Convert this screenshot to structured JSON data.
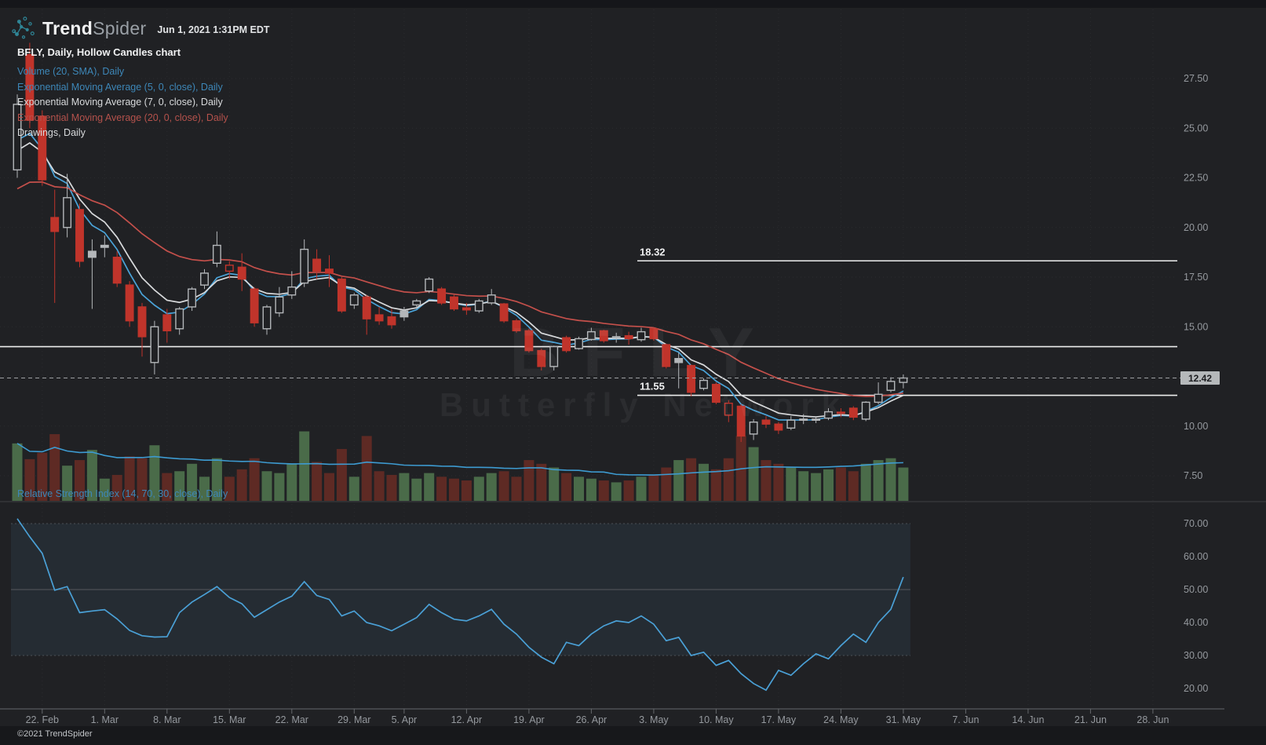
{
  "header": {
    "brand_bold": "Trend",
    "brand_light": "Spider",
    "timestamp": "Jun 1, 2021 1:31PM EDT"
  },
  "legend": {
    "title": "BFLY, Daily, Hollow Candles chart",
    "indicators": [
      {
        "label": "Volume (20, SMA), Daily",
        "color": "#3d87b8"
      },
      {
        "label": "Exponential Moving Average (5, 0, close), Daily",
        "color": "#3d87b8"
      },
      {
        "label": "Exponential Moving Average (7, 0, close), Daily",
        "color": "#d8dadc"
      },
      {
        "label": "Exponential Moving Average (20, 0, close), Daily",
        "color": "#b5524c"
      },
      {
        "label": "Drawings, Daily",
        "color": "#d8dadc"
      }
    ]
  },
  "rsi_legend": {
    "label": "Relative Strength Index (14, 70, 30, close), Daily",
    "color": "#3d87b8"
  },
  "watermark": {
    "line1": "BFLY",
    "line2": "Butterfly Network"
  },
  "footer": {
    "copyright": "©2021 TrendSpider"
  },
  "colors": {
    "background": "#202124",
    "candle_red": "#c0342b",
    "candle_gray": "#b4b7ba",
    "ema5": "#4aa3d8",
    "ema7": "#d8dadc",
    "ema20": "#c4504b",
    "volume_up": "#4a6b49",
    "volume_down": "#5e2a24",
    "volume_sma": "#3d9bd1",
    "rsi_line": "#4aa0d6",
    "rsi_band_fill": "#252c33",
    "axis_text": "#95999e",
    "axis_line": "#65686c",
    "drawing_line": "#eceded",
    "dashed_line": "#9fa2a5",
    "separator": "#3f4144"
  },
  "chart_data": {
    "type": "candlestick",
    "symbol": "BFLY",
    "timeframe": "Daily",
    "style": "Hollow Candles",
    "title": "BFLY, Daily, Hollow Candles chart",
    "dates": [
      "Feb 18",
      "Feb 19",
      "Feb 22",
      "Feb 23",
      "Feb 24",
      "Feb 25",
      "Feb 26",
      "Mar 1",
      "Mar 2",
      "Mar 3",
      "Mar 4",
      "Mar 5",
      "Mar 8",
      "Mar 9",
      "Mar 10",
      "Mar 11",
      "Mar 12",
      "Mar 15",
      "Mar 16",
      "Mar 17",
      "Mar 18",
      "Mar 19",
      "Mar 22",
      "Mar 23",
      "Mar 24",
      "Mar 25",
      "Mar 26",
      "Mar 29",
      "Mar 30",
      "Mar 31",
      "Apr 1",
      "Apr 5",
      "Apr 6",
      "Apr 7",
      "Apr 8",
      "Apr 9",
      "Apr 12",
      "Apr 13",
      "Apr 14",
      "Apr 15",
      "Apr 16",
      "Apr 19",
      "Apr 20",
      "Apr 21",
      "Apr 22",
      "Apr 23",
      "Apr 26",
      "Apr 27",
      "Apr 28",
      "Apr 29",
      "Apr 30",
      "May 3",
      "May 4",
      "May 5",
      "May 6",
      "May 7",
      "May 10",
      "May 11",
      "May 12",
      "May 13",
      "May 14",
      "May 17",
      "May 18",
      "May 19",
      "May 20",
      "May 21",
      "May 24",
      "May 25",
      "May 26",
      "May 27",
      "May 28",
      "Jun 1"
    ],
    "ohlc": [
      [
        22.9,
        26.7,
        22.5,
        26.2
      ],
      [
        28.7,
        29.3,
        25.0,
        25.4
      ],
      [
        25.6,
        25.9,
        22.1,
        22.4
      ],
      [
        20.5,
        21.9,
        16.2,
        19.8
      ],
      [
        20.0,
        22.7,
        19.5,
        21.5
      ],
      [
        20.9,
        21.2,
        18.0,
        18.3
      ],
      [
        18.8,
        19.4,
        15.9,
        18.5
      ],
      [
        19.1,
        19.6,
        18.5,
        19.0
      ],
      [
        18.5,
        18.8,
        17.0,
        17.2
      ],
      [
        17.1,
        17.3,
        15.0,
        15.3
      ],
      [
        16.0,
        16.2,
        13.5,
        14.5
      ],
      [
        13.2,
        15.3,
        12.6,
        15.0
      ],
      [
        15.6,
        15.9,
        14.2,
        14.8
      ],
      [
        14.9,
        16.0,
        14.6,
        15.9
      ],
      [
        16.0,
        17.0,
        15.8,
        16.9
      ],
      [
        17.1,
        17.9,
        16.9,
        17.7
      ],
      [
        18.2,
        19.8,
        18.0,
        19.1
      ],
      [
        17.8,
        18.3,
        17.4,
        18.1
      ],
      [
        18.0,
        18.7,
        16.8,
        17.4
      ],
      [
        16.9,
        17.0,
        15.0,
        15.2
      ],
      [
        14.9,
        16.1,
        14.6,
        16.0
      ],
      [
        15.7,
        17.0,
        15.5,
        16.5
      ],
      [
        16.6,
        17.8,
        16.4,
        17.0
      ],
      [
        17.2,
        19.4,
        17.0,
        18.9
      ],
      [
        18.4,
        18.9,
        17.4,
        17.8
      ],
      [
        17.9,
        18.6,
        17.0,
        17.7
      ],
      [
        17.4,
        17.5,
        15.7,
        15.8
      ],
      [
        16.1,
        16.7,
        15.9,
        16.6
      ],
      [
        16.5,
        16.6,
        14.6,
        15.4
      ],
      [
        15.6,
        16.0,
        15.1,
        15.3
      ],
      [
        15.5,
        15.9,
        14.9,
        15.1
      ],
      [
        15.8,
        16.0,
        15.3,
        15.5
      ],
      [
        16.1,
        16.4,
        15.9,
        16.3
      ],
      [
        16.8,
        17.5,
        16.7,
        17.4
      ],
      [
        16.9,
        17.0,
        16.1,
        16.2
      ],
      [
        16.5,
        16.6,
        15.8,
        15.9
      ],
      [
        15.95,
        16.2,
        15.6,
        15.85
      ],
      [
        15.8,
        16.4,
        15.7,
        16.3
      ],
      [
        16.2,
        16.9,
        16.1,
        16.6
      ],
      [
        16.15,
        16.2,
        15.2,
        15.3
      ],
      [
        15.3,
        15.4,
        14.7,
        14.8
      ],
      [
        14.8,
        14.9,
        13.7,
        13.8
      ],
      [
        13.8,
        13.9,
        12.8,
        13.0
      ],
      [
        13.0,
        14.05,
        12.8,
        14.0
      ],
      [
        14.45,
        14.55,
        13.7,
        13.8
      ],
      [
        13.9,
        14.5,
        13.85,
        14.4
      ],
      [
        14.36,
        14.95,
        14.3,
        14.75
      ],
      [
        14.8,
        14.85,
        14.2,
        14.3
      ],
      [
        14.5,
        14.7,
        14.2,
        14.45
      ],
      [
        14.55,
        14.75,
        14.1,
        14.4
      ],
      [
        14.35,
        14.95,
        14.25,
        14.75
      ],
      [
        14.9,
        14.95,
        14.3,
        14.4
      ],
      [
        14.1,
        14.15,
        12.9,
        13.0
      ],
      [
        13.4,
        13.7,
        11.9,
        13.2
      ],
      [
        13.05,
        13.1,
        11.5,
        11.7
      ],
      [
        11.9,
        12.4,
        11.8,
        12.3
      ],
      [
        12.1,
        12.2,
        11.1,
        11.2
      ],
      [
        10.55,
        11.3,
        10.2,
        11.15
      ],
      [
        11.0,
        11.1,
        9.2,
        9.5
      ],
      [
        9.6,
        10.35,
        9.3,
        10.2
      ],
      [
        10.3,
        10.5,
        9.9,
        10.1
      ],
      [
        10.1,
        10.2,
        9.6,
        9.8
      ],
      [
        9.9,
        10.5,
        9.8,
        10.3
      ],
      [
        10.35,
        10.6,
        10.1,
        10.3
      ],
      [
        10.3,
        10.45,
        10.15,
        10.35
      ],
      [
        10.4,
        10.9,
        10.3,
        10.72
      ],
      [
        10.65,
        10.9,
        10.45,
        10.7
      ],
      [
        10.9,
        11.0,
        10.3,
        10.45
      ],
      [
        10.35,
        11.25,
        10.25,
        11.2
      ],
      [
        11.2,
        12.2,
        11.1,
        11.6
      ],
      [
        11.8,
        12.45,
        11.7,
        12.25
      ],
      [
        12.2,
        12.6,
        11.9,
        12.42
      ]
    ],
    "volume_rel": [
      0.62,
      0.45,
      0.52,
      0.72,
      0.38,
      0.44,
      0.55,
      0.24,
      0.28,
      0.48,
      0.46,
      0.6,
      0.3,
      0.32,
      0.4,
      0.26,
      0.46,
      0.26,
      0.34,
      0.46,
      0.32,
      0.3,
      0.4,
      0.75,
      0.42,
      0.3,
      0.56,
      0.26,
      0.7,
      0.32,
      0.28,
      0.3,
      0.24,
      0.3,
      0.26,
      0.24,
      0.22,
      0.26,
      0.3,
      0.32,
      0.26,
      0.44,
      0.4,
      0.36,
      0.3,
      0.26,
      0.24,
      0.22,
      0.2,
      0.22,
      0.26,
      0.28,
      0.36,
      0.44,
      0.46,
      0.4,
      0.34,
      0.46,
      0.7,
      0.58,
      0.44,
      0.4,
      0.36,
      0.32,
      0.3,
      0.34,
      0.36,
      0.32,
      0.4,
      0.44,
      0.46,
      0.36
    ],
    "rsi": [
      71.5,
      66,
      61,
      49.8,
      50.9,
      43,
      43.5,
      43.9,
      41.1,
      37.6,
      36,
      35.6,
      35.7,
      43,
      46.2,
      48.5,
      50.9,
      47.6,
      45.7,
      41.6,
      43.9,
      46.2,
      48,
      52.4,
      48.2,
      47,
      42,
      43.5,
      40,
      39,
      37.5,
      39.5,
      41.5,
      45.5,
      43,
      41,
      40.5,
      42,
      44,
      39.5,
      36.5,
      32.5,
      29.5,
      27.5,
      34,
      33,
      36.5,
      39,
      40.5,
      40,
      42,
      39.5,
      34.5,
      35.5,
      30,
      31,
      27,
      28.5,
      24.5,
      21.5,
      19.5,
      25.5,
      24,
      27.5,
      30.5,
      29,
      33,
      36.5,
      34,
      40,
      44,
      53.8
    ],
    "indicators": {
      "ema_periods": [
        5,
        7,
        20
      ],
      "ema_seeds": [
        23.5,
        23.1,
        21.5
      ],
      "volume_sma_period": 20,
      "rsi_period": 14,
      "rsi_levels": {
        "upper": 70,
        "lower": 30,
        "mid": 50
      }
    },
    "price_axis": {
      "labels": [
        "27.50",
        "25.00",
        "22.50",
        "20.00",
        "17.50",
        "15.00",
        "12.50",
        "10.00",
        "7.50"
      ],
      "last_price": "12.42"
    },
    "rsi_axis": {
      "labels": [
        "70.00",
        "60.00",
        "50.00",
        "40.00",
        "30.00",
        "20.00"
      ]
    },
    "time_axis": {
      "ticks": [
        {
          "label": "22. Feb",
          "index": 2
        },
        {
          "label": "1. Mar",
          "index": 7
        },
        {
          "label": "8. Mar",
          "index": 12
        },
        {
          "label": "15. Mar",
          "index": 17
        },
        {
          "label": "22. Mar",
          "index": 22
        },
        {
          "label": "29. Mar",
          "index": 27
        },
        {
          "label": "5. Apr",
          "index": 31
        },
        {
          "label": "12. Apr",
          "index": 36
        },
        {
          "label": "19. Apr",
          "index": 41
        },
        {
          "label": "26. Apr",
          "index": 46
        },
        {
          "label": "3. May",
          "index": 51
        },
        {
          "label": "10. May",
          "index": 56
        },
        {
          "label": "17. May",
          "index": 61
        },
        {
          "label": "24. May",
          "index": 66
        },
        {
          "label": "31. May",
          "index": 71
        },
        {
          "label": "7. Jun",
          "index": 76
        },
        {
          "label": "14. Jun",
          "index": 81
        },
        {
          "label": "21. Jun",
          "index": 86
        },
        {
          "label": "28. Jun",
          "index": 91
        }
      ]
    },
    "drawings": [
      {
        "label": "18.32",
        "price": 18.32,
        "from_index": 50
      },
      {
        "label": null,
        "price": 14.0,
        "from_index": null
      },
      {
        "label": "11.55",
        "price": 11.55,
        "from_index": 50
      }
    ],
    "last_price": 12.42
  }
}
